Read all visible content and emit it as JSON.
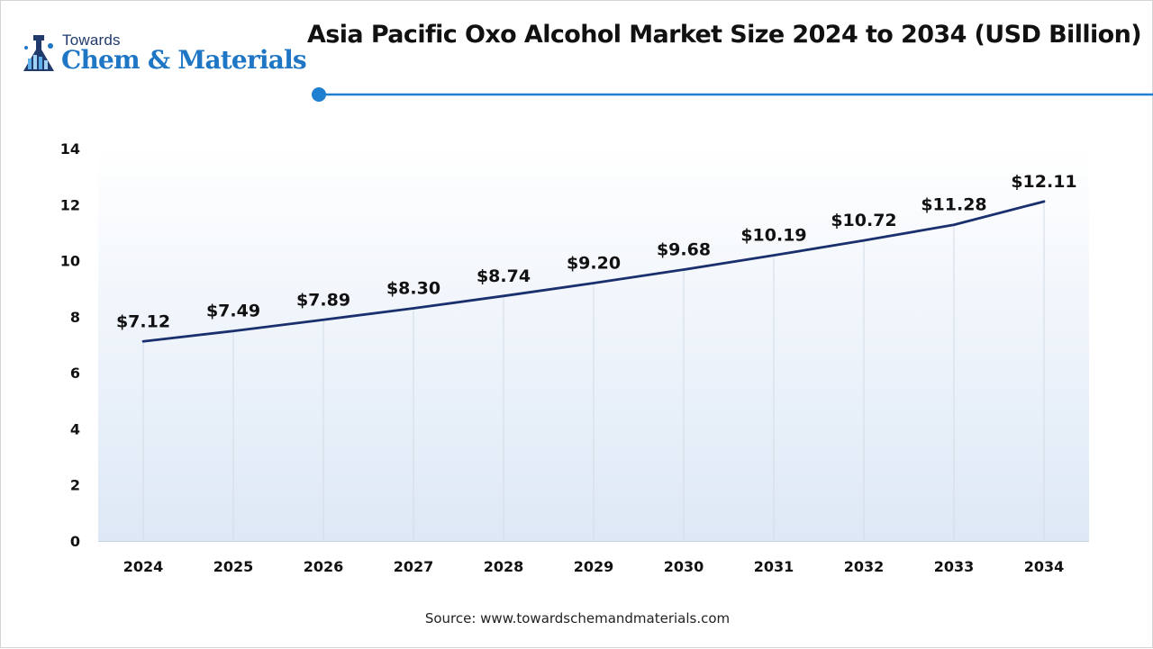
{
  "logo": {
    "line1": "Towards",
    "line2": "Chem & Materials",
    "colors": {
      "dark": "#1f3a6b",
      "accent": "#1f76c4"
    }
  },
  "chart_data": {
    "type": "line",
    "title": "Asia Pacific Oxo Alcohol Market Size 2024 to 2034 (USD Billion)",
    "categories": [
      "2024",
      "2025",
      "2026",
      "2027",
      "2028",
      "2029",
      "2030",
      "2031",
      "2032",
      "2033",
      "2034"
    ],
    "series": [
      {
        "values": [
          7.12,
          7.49,
          7.89,
          8.3,
          8.74,
          9.2,
          9.68,
          10.19,
          10.72,
          11.28,
          12.11
        ],
        "labels": [
          "$7.12",
          "$7.49",
          "$7.89",
          "$8.30",
          "$8.74",
          "$9.20",
          "$9.68",
          "$10.19",
          "$10.72",
          "$11.28",
          "$12.11"
        ],
        "color": "#1a2f6e"
      }
    ],
    "yticks": [
      "0",
      "2",
      "4",
      "6",
      "8",
      "10",
      "12",
      "14"
    ],
    "ylim": [
      0,
      14
    ],
    "xlabel": "",
    "ylabel": "",
    "grid": "vertical",
    "legend": "none",
    "background_gradient": [
      "#ffffff",
      "#dde8f6"
    ],
    "accent_color": "#1f7fd0"
  },
  "footer": {
    "source": "Source: www.towardschemandmaterials.com"
  }
}
